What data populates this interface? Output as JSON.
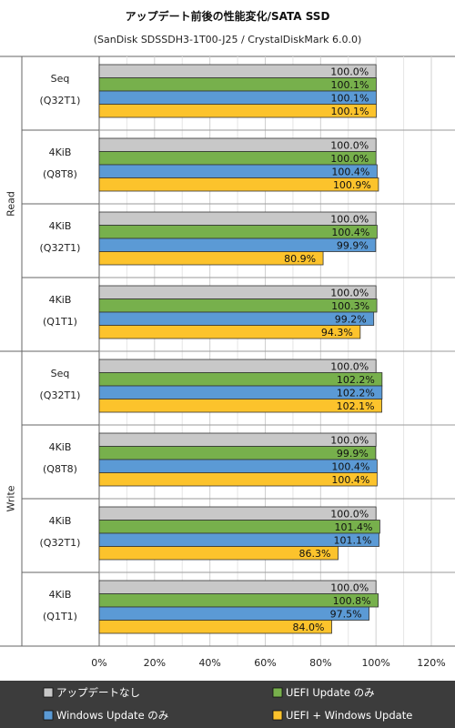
{
  "chart_data": {
    "type": "bar",
    "orientation": "horizontal",
    "title": "アップデート前後の性能変化/SATA SSD",
    "subtitle": "(SanDisk SDSSDH3-1T00-J25 / CrystalDiskMark 6.0.0)",
    "xlim": [
      0,
      120
    ],
    "x_ticks": [
      "0%",
      "20%",
      "40%",
      "60%",
      "80%",
      "100%",
      "120%"
    ],
    "grid": true,
    "legend_position": "bottom",
    "groups": [
      {
        "name": "Read",
        "categories": [
          {
            "line1": "Seq",
            "line2": "(Q32T1)"
          },
          {
            "line1": "4KiB",
            "line2": "(Q8T8)"
          },
          {
            "line1": "4KiB",
            "line2": "(Q32T1)"
          },
          {
            "line1": "4KiB",
            "line2": "(Q1T1)"
          }
        ]
      },
      {
        "name": "Write",
        "categories": [
          {
            "line1": "Seq",
            "line2": "(Q32T1)"
          },
          {
            "line1": "4KiB",
            "line2": "(Q8T8)"
          },
          {
            "line1": "4KiB",
            "line2": "(Q32T1)"
          },
          {
            "line1": "4KiB",
            "line2": "(Q1T1)"
          }
        ]
      }
    ],
    "series": [
      {
        "name": "アップデートなし",
        "color": "#c8c8c8",
        "values": [
          100.0,
          100.0,
          100.0,
          100.0,
          100.0,
          100.0,
          100.0,
          100.0
        ],
        "labels": [
          "100.0%",
          "100.0%",
          "100.0%",
          "100.0%",
          "100.0%",
          "100.0%",
          "100.0%",
          "100.0%"
        ]
      },
      {
        "name": "UEFI Update のみ",
        "color": "#77b04c",
        "values": [
          100.1,
          100.0,
          100.4,
          100.3,
          102.2,
          99.9,
          101.4,
          100.8
        ],
        "labels": [
          "100.1%",
          "100.0%",
          "100.4%",
          "100.3%",
          "102.2%",
          "99.9%",
          "101.4%",
          "100.8%"
        ]
      },
      {
        "name": "Windows Update のみ",
        "color": "#5b9ad5",
        "values": [
          100.1,
          100.4,
          99.9,
          99.2,
          102.2,
          100.4,
          101.1,
          97.5
        ],
        "labels": [
          "100.1%",
          "100.4%",
          "99.9%",
          "99.2%",
          "102.2%",
          "100.4%",
          "101.1%",
          "97.5%"
        ]
      },
      {
        "name": "UEFI + Windows Update",
        "color": "#fcc32c",
        "values": [
          100.1,
          100.9,
          80.9,
          94.3,
          102.1,
          100.4,
          86.3,
          84.0
        ],
        "labels": [
          "100.1%",
          "100.9%",
          "80.9%",
          "94.3%",
          "102.1%",
          "100.4%",
          "86.3%",
          "84.0%"
        ]
      }
    ],
    "colors": {
      "legend_background": "#3c3c3c",
      "gridline": "#d0d0d0",
      "bar_outline": "#333333"
    }
  }
}
